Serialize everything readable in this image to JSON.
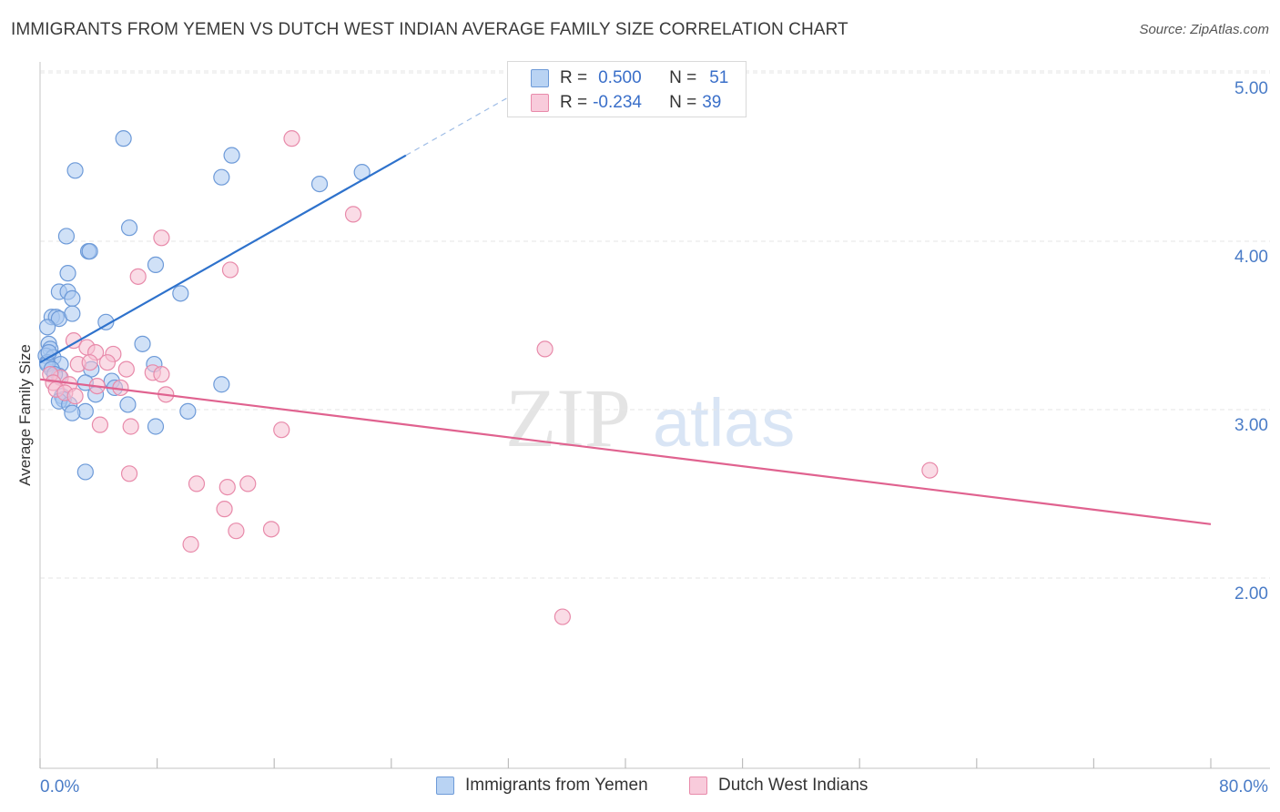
{
  "title": "IMMIGRANTS FROM YEMEN VS DUTCH WEST INDIAN AVERAGE FAMILY SIZE CORRELATION CHART",
  "source": "Source: ZipAtlas.com",
  "watermark": {
    "zip": "ZIP",
    "atlas": "atlas"
  },
  "legend": {
    "rows": [
      {
        "r_label": "R =",
        "r_value": "0.500",
        "n_label": "N =",
        "n_value": "51"
      },
      {
        "r_label": "R =",
        "r_value": "-0.234",
        "n_label": "N =",
        "n_value": "39"
      }
    ]
  },
  "bottom_legend": [
    "Immigrants from Yemen",
    "Dutch West Indians"
  ],
  "colors": {
    "blue_fill": "#a9c8f0",
    "blue_stroke": "#6d9ad8",
    "blue_line": "#2e72cc",
    "pink_fill": "#f6c0d2",
    "pink_stroke": "#e88aaa",
    "pink_line": "#e0628f",
    "axis_text": "#4a7cc7"
  },
  "chart_data": {
    "type": "scatter",
    "xlabel": "",
    "ylabel": "Average Family Size",
    "xlim": [
      0,
      80
    ],
    "ylim": [
      1.0,
      5.1
    ],
    "x_tick_labels": [
      "0.0%",
      "80.0%"
    ],
    "y_ticks": [
      2.0,
      3.0,
      4.0,
      5.0
    ],
    "y_tick_labels": [
      "2.00",
      "3.00",
      "4.00",
      "5.00"
    ],
    "grid": true,
    "legend_position": "top-center",
    "series": [
      {
        "name": "Immigrants from Yemen",
        "r": 0.5,
        "n": 51,
        "trend": {
          "x": [
            0.0,
            25.0
          ],
          "y": [
            3.28,
            4.51
          ],
          "extend_dashed_to_x": 33.0
        },
        "points": [
          [
            5.7,
            4.61
          ],
          [
            2.4,
            4.42
          ],
          [
            13.1,
            4.51
          ],
          [
            12.4,
            4.38
          ],
          [
            19.1,
            4.34
          ],
          [
            22.0,
            4.41
          ],
          [
            1.8,
            4.03
          ],
          [
            6.1,
            4.08
          ],
          [
            3.3,
            3.94
          ],
          [
            3.4,
            3.94
          ],
          [
            7.9,
            3.86
          ],
          [
            1.9,
            3.81
          ],
          [
            1.3,
            3.7
          ],
          [
            1.9,
            3.7
          ],
          [
            2.2,
            3.66
          ],
          [
            9.6,
            3.69
          ],
          [
            0.8,
            3.55
          ],
          [
            1.1,
            3.55
          ],
          [
            1.3,
            3.54
          ],
          [
            2.2,
            3.57
          ],
          [
            4.5,
            3.52
          ],
          [
            0.5,
            3.49
          ],
          [
            0.6,
            3.39
          ],
          [
            0.7,
            3.36
          ],
          [
            0.4,
            3.32
          ],
          [
            0.9,
            3.31
          ],
          [
            0.5,
            3.28
          ],
          [
            1.4,
            3.27
          ],
          [
            0.5,
            3.27
          ],
          [
            1.3,
            3.2
          ],
          [
            0.8,
            3.24
          ],
          [
            7.0,
            3.39
          ],
          [
            7.8,
            3.27
          ],
          [
            3.5,
            3.24
          ],
          [
            4.9,
            3.17
          ],
          [
            3.1,
            3.16
          ],
          [
            5.1,
            3.13
          ],
          [
            3.8,
            3.09
          ],
          [
            1.5,
            3.08
          ],
          [
            1.6,
            3.06
          ],
          [
            1.3,
            3.05
          ],
          [
            2.0,
            3.03
          ],
          [
            6.0,
            3.03
          ],
          [
            3.1,
            2.99
          ],
          [
            2.2,
            2.98
          ],
          [
            10.1,
            2.99
          ],
          [
            7.9,
            2.9
          ],
          [
            12.4,
            3.15
          ],
          [
            3.1,
            2.63
          ],
          [
            0.6,
            3.34
          ],
          [
            1.0,
            3.21
          ]
        ]
      },
      {
        "name": "Dutch West Indians",
        "r": -0.234,
        "n": 39,
        "trend": {
          "x": [
            0.0,
            80.0
          ],
          "y": [
            3.18,
            2.32
          ]
        },
        "points": [
          [
            17.2,
            4.61
          ],
          [
            21.4,
            4.16
          ],
          [
            8.3,
            4.02
          ],
          [
            13.0,
            3.83
          ],
          [
            6.7,
            3.79
          ],
          [
            2.3,
            3.41
          ],
          [
            3.2,
            3.37
          ],
          [
            3.8,
            3.34
          ],
          [
            5.0,
            3.33
          ],
          [
            34.5,
            3.36
          ],
          [
            2.6,
            3.27
          ],
          [
            3.4,
            3.28
          ],
          [
            4.6,
            3.28
          ],
          [
            5.9,
            3.24
          ],
          [
            7.7,
            3.22
          ],
          [
            8.3,
            3.21
          ],
          [
            1.4,
            3.19
          ],
          [
            0.7,
            3.21
          ],
          [
            0.9,
            3.16
          ],
          [
            2.0,
            3.15
          ],
          [
            1.1,
            3.12
          ],
          [
            3.9,
            3.14
          ],
          [
            5.5,
            3.13
          ],
          [
            1.7,
            3.1
          ],
          [
            2.4,
            3.08
          ],
          [
            8.6,
            3.09
          ],
          [
            4.1,
            2.91
          ],
          [
            6.2,
            2.9
          ],
          [
            16.5,
            2.88
          ],
          [
            6.1,
            2.62
          ],
          [
            60.8,
            2.64
          ],
          [
            10.7,
            2.56
          ],
          [
            12.8,
            2.54
          ],
          [
            14.2,
            2.56
          ],
          [
            12.6,
            2.41
          ],
          [
            13.4,
            2.28
          ],
          [
            15.8,
            2.29
          ],
          [
            10.3,
            2.2
          ],
          [
            35.7,
            1.77
          ]
        ]
      }
    ]
  }
}
